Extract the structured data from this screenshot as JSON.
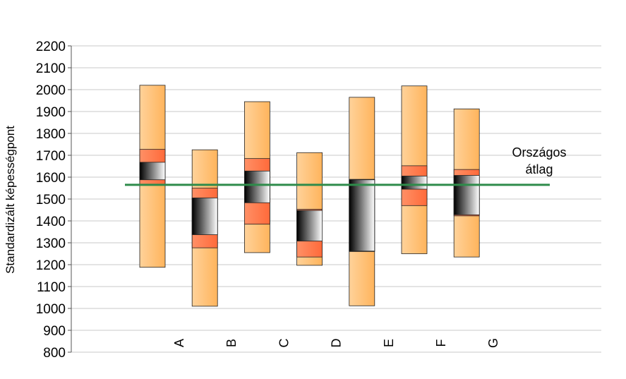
{
  "chart_data": {
    "type": "box",
    "ylabel": "Standardizált képességpont",
    "ylim": [
      800,
      2200
    ],
    "ytick_step": 100,
    "grid": true,
    "categories": [
      "A",
      "B",
      "C",
      "D",
      "E",
      "F",
      "G"
    ],
    "boxes": [
      {
        "category": "A",
        "min": 1188,
        "p25": 1563,
        "p50": 1588,
        "p75": 1668,
        "p90": 1727,
        "max": 2020
      },
      {
        "category": "B",
        "min": 1010,
        "p10": 1277,
        "p25": 1337,
        "p75": 1505,
        "p90": 1550,
        "max": 1725
      },
      {
        "category": "C",
        "min": 1255,
        "p10": 1385,
        "p25": 1483,
        "p75": 1628,
        "p90": 1685,
        "max": 1945
      },
      {
        "category": "D",
        "min": 1197,
        "p10": 1235,
        "p25": 1308,
        "p75": 1448,
        "p90": 1453,
        "max": 1712
      },
      {
        "category": "E",
        "min": 1012,
        "p10": 1260,
        "p25": 1262,
        "p75": 1588,
        "p90": 1590,
        "max": 1965
      },
      {
        "category": "F",
        "min": 1250,
        "p10": 1470,
        "p25": 1545,
        "p75": 1605,
        "p90": 1652,
        "max": 2017
      },
      {
        "category": "G",
        "min": 1235,
        "p10": 1423,
        "p25": 1428,
        "p75": 1608,
        "p90": 1635,
        "max": 1912
      }
    ],
    "reference_line": {
      "label": "Országos átlag",
      "label_lines": [
        "Országos",
        "átlag"
      ],
      "value": 1565,
      "color": "#2e8b4a"
    },
    "colors": {
      "outer": "#ffc27a",
      "inner": "#ff7f50",
      "core_dark": "#000000",
      "core_light": "#ffffff",
      "grid": "#c8c8c8"
    }
  }
}
